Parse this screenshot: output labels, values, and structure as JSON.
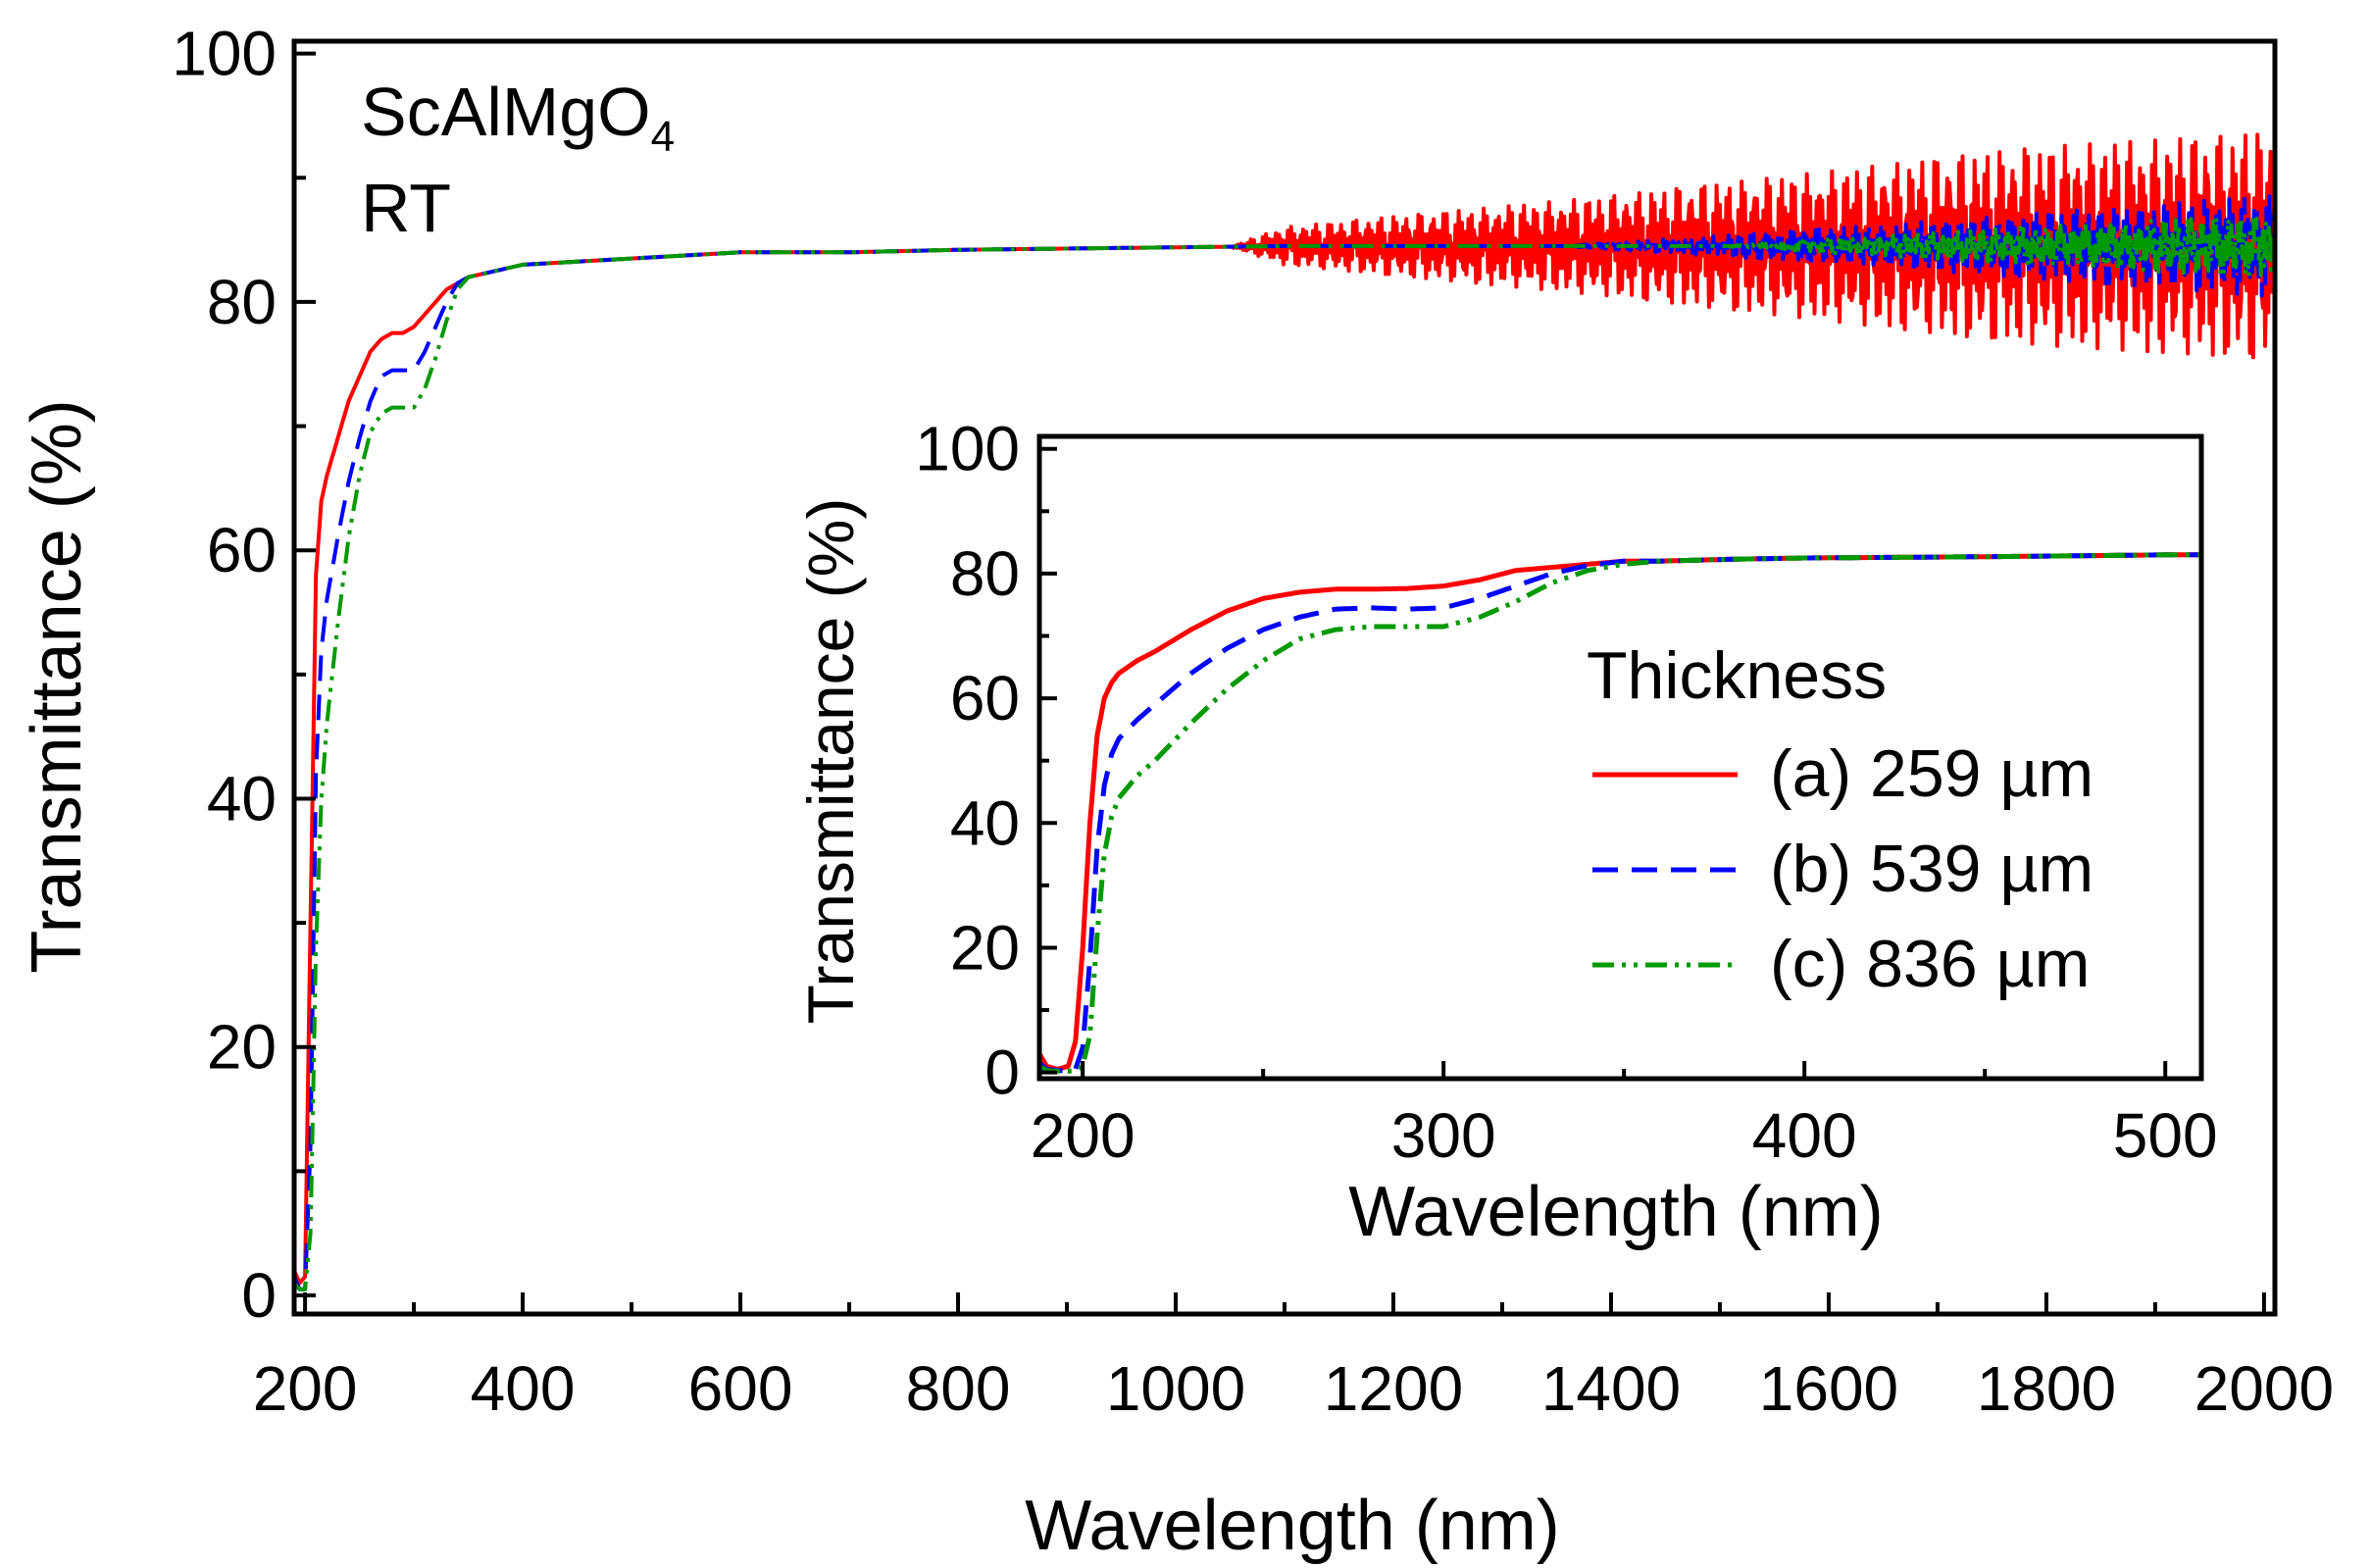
{
  "chart_data": [
    {
      "type": "line",
      "name": "main",
      "xlabel": "Wavelength (nm)",
      "ylabel": "Transmittance (%)",
      "xlim": [
        190,
        2010
      ],
      "ylim": [
        -1.5,
        101
      ],
      "xticks": [
        200,
        400,
        600,
        800,
        1000,
        1200,
        1400,
        1600,
        1800,
        2000
      ],
      "xtick_labels": [
        "200",
        "400",
        "600",
        "800",
        "1000",
        "1200",
        "1400",
        "1600",
        "1800",
        "2000"
      ],
      "yticks": [
        0,
        20,
        40,
        60,
        80,
        100
      ],
      "ytick_labels": [
        "0",
        "20",
        "40",
        "60",
        "80",
        "100"
      ],
      "annotation": {
        "formula_base": "ScAlMgO",
        "formula_sub": "4",
        "condition": "RT"
      },
      "series": [
        {
          "name": "(a) 259 µm",
          "color": "#ff0000",
          "dash": "solid",
          "x": [
            190,
            195,
            200,
            205,
            210,
            215,
            220,
            230,
            240,
            250,
            260,
            270,
            280,
            290,
            300,
            310,
            320,
            330,
            340,
            350,
            400,
            500,
            600,
            700,
            800,
            900,
            1000,
            1100,
            1200,
            1400,
            1600,
            1800,
            2000
          ],
          "y": [
            2,
            1,
            1.5,
            30,
            58,
            64,
            66,
            69,
            72,
            74,
            76,
            77,
            77.5,
            77.5,
            78,
            79,
            80,
            81,
            81.5,
            82,
            83,
            83.5,
            84,
            84,
            84.2,
            84.3,
            84.4,
            84.5,
            84.5,
            84.5,
            84.5,
            84.5,
            84.5
          ],
          "noise_amp_at": [
            [
              1050,
              0
            ],
            [
              1100,
              1.5
            ],
            [
              1400,
              4
            ],
            [
              1600,
              6
            ],
            [
              1800,
              8
            ],
            [
              2000,
              9
            ]
          ]
        },
        {
          "name": "(b) 539 µm",
          "color": "#0000ff",
          "dash": "dashed",
          "x": [
            190,
            195,
            200,
            205,
            210,
            215,
            220,
            230,
            240,
            250,
            260,
            270,
            280,
            290,
            300,
            310,
            320,
            330,
            340,
            350,
            400,
            500,
            600,
            700,
            800,
            900,
            1000,
            1100,
            1200,
            1400,
            1600,
            1800,
            2000
          ],
          "y": [
            1.5,
            0.5,
            0.5,
            12,
            42,
            52,
            56,
            61,
            65.5,
            69,
            72,
            74,
            74.5,
            74.5,
            74.5,
            76,
            78,
            80,
            81.5,
            82,
            83,
            83.5,
            84,
            84,
            84.2,
            84.3,
            84.4,
            84.5,
            84.5,
            84.5,
            84.5,
            84.5,
            84.5
          ],
          "noise_amp_at": [
            [
              1350,
              0
            ],
            [
              1500,
              0.8
            ],
            [
              1700,
              2
            ],
            [
              1850,
              3
            ],
            [
              2000,
              4
            ]
          ]
        },
        {
          "name": "(c) 836 µm",
          "color": "#009900",
          "dash": "dashdotdot",
          "x": [
            190,
            195,
            200,
            205,
            210,
            215,
            220,
            230,
            240,
            250,
            260,
            270,
            280,
            290,
            300,
            310,
            320,
            330,
            340,
            350,
            400,
            500,
            600,
            700,
            800,
            900,
            1000,
            1100,
            1200,
            1400,
            1600,
            1800,
            2000
          ],
          "y": [
            1,
            0.5,
            0.5,
            5,
            28,
            40,
            46,
            54,
            61,
            66,
            69.5,
            71,
            71.5,
            71.5,
            71.5,
            73,
            75.5,
            78.5,
            81,
            82,
            83,
            83.5,
            84,
            84,
            84.2,
            84.3,
            84.4,
            84.5,
            84.5,
            84.5,
            84.5,
            84.5,
            84.5
          ],
          "noise_amp_at": [
            [
              1500,
              0
            ],
            [
              1650,
              0.8
            ],
            [
              1800,
              1.6
            ],
            [
              2000,
              2.5
            ]
          ]
        }
      ]
    },
    {
      "type": "line",
      "name": "inset",
      "xlabel": "Wavelength (nm)",
      "ylabel": "Transmittance (%)",
      "xlim": [
        188,
        510
      ],
      "ylim": [
        -1,
        102
      ],
      "xticks": [
        200,
        300,
        400,
        500
      ],
      "xtick_labels": [
        "200",
        "300",
        "400",
        "500"
      ],
      "yticks": [
        0,
        20,
        40,
        60,
        80,
        100
      ],
      "ytick_labels": [
        "0",
        "20",
        "40",
        "60",
        "80",
        "100"
      ],
      "legend_title": "Thickness",
      "series": [
        {
          "name": "(a) 259 µm",
          "color": "#ff0000",
          "dash": "solid",
          "x": [
            188,
            190,
            193,
            196,
            198,
            200,
            202,
            204,
            206,
            208,
            210,
            215,
            220,
            230,
            240,
            250,
            260,
            270,
            280,
            290,
            300,
            310,
            320,
            330,
            340,
            350,
            360,
            380,
            400,
            450,
            500,
            510
          ],
          "y": [
            3,
            1,
            0.5,
            1,
            5,
            20,
            40,
            54,
            60,
            62.5,
            64,
            66,
            67.5,
            71,
            74,
            76,
            77,
            77.5,
            77.5,
            77.6,
            78,
            79,
            80.5,
            81,
            81.5,
            82,
            82,
            82.3,
            82.5,
            82.7,
            83,
            83
          ]
        },
        {
          "name": "(b) 539 µm",
          "color": "#0000ff",
          "dash": "dashed",
          "x": [
            188,
            190,
            193,
            196,
            198,
            200,
            202,
            204,
            206,
            208,
            210,
            215,
            220,
            230,
            240,
            250,
            260,
            270,
            280,
            290,
            300,
            310,
            320,
            330,
            340,
            350,
            360,
            380,
            400,
            450,
            500,
            510
          ],
          "y": [
            1.5,
            0.5,
            0.3,
            0.3,
            0.5,
            4,
            18,
            36,
            46,
            51,
            53.5,
            56.5,
            59,
            64,
            68,
            71,
            73,
            74.3,
            74.5,
            74.3,
            74.5,
            76,
            78,
            80,
            81.3,
            82,
            82,
            82.3,
            82.5,
            82.7,
            83,
            83
          ]
        },
        {
          "name": "(c) 836 µm",
          "color": "#009900",
          "dash": "dashdotdot",
          "x": [
            188,
            190,
            193,
            196,
            198,
            200,
            202,
            204,
            206,
            208,
            210,
            215,
            220,
            230,
            240,
            250,
            260,
            270,
            280,
            290,
            300,
            310,
            320,
            330,
            340,
            350,
            360,
            380,
            400,
            450,
            500,
            510
          ],
          "y": [
            1,
            0.3,
            0.2,
            0.2,
            0.3,
            1,
            6,
            22,
            35,
            41,
            44,
            47.5,
            50,
            56,
            61.5,
            66,
            69.5,
            71,
            71.5,
            71.5,
            71.5,
            73,
            75.5,
            78.5,
            80.5,
            81.5,
            82,
            82.3,
            82.5,
            82.7,
            83,
            83
          ]
        }
      ]
    }
  ]
}
